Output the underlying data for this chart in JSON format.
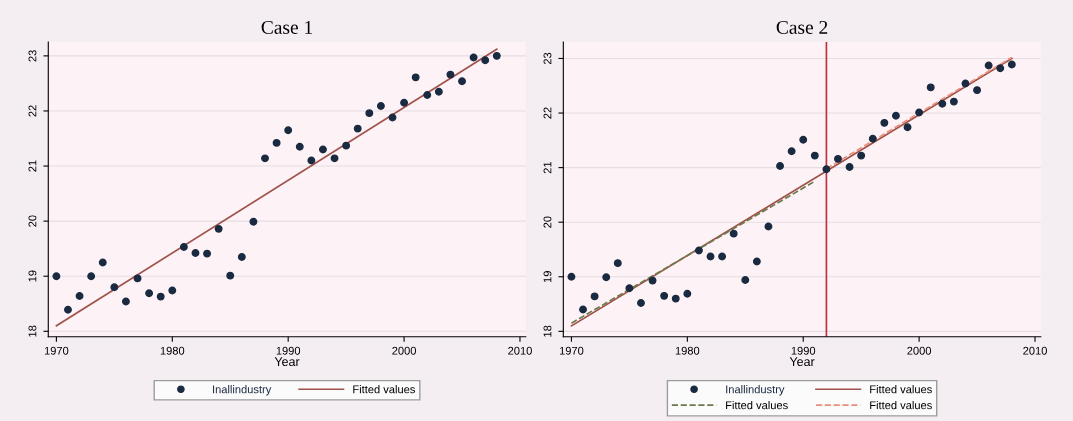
{
  "chart_data": [
    {
      "type": "scatter",
      "title": "Case 1",
      "xlabel": "Year",
      "xlim": [
        1969.3,
        2010.5
      ],
      "xticks": [
        1970,
        1980,
        1990,
        2000,
        2010
      ],
      "ylim": [
        17.9,
        23.25
      ],
      "yticks": [
        18,
        19,
        20,
        21,
        22,
        23
      ],
      "grid": "y",
      "legend": "bottom",
      "series": [
        {
          "name": "Inallindustry",
          "type": "scatter",
          "marker": "circle",
          "color": "#1a2a40",
          "x": [
            1970,
            1971,
            1972,
            1973,
            1974,
            1975,
            1976,
            1977,
            1978,
            1979,
            1980,
            1981,
            1982,
            1983,
            1984,
            1985,
            1986,
            1987,
            1988,
            1989,
            1990,
            1991,
            1992,
            1993,
            1994,
            1995,
            1996,
            1997,
            1998,
            1999,
            2000,
            2001,
            2002,
            2003,
            2004,
            2005,
            2006,
            2007,
            2008
          ],
          "values": [
            19.0,
            18.39,
            18.64,
            19.0,
            19.25,
            18.8,
            18.54,
            18.96,
            18.69,
            18.63,
            18.74,
            19.53,
            19.42,
            19.41,
            19.86,
            19.01,
            19.35,
            19.99,
            21.14,
            21.42,
            21.65,
            21.35,
            21.1,
            21.3,
            21.14,
            21.37,
            21.68,
            21.96,
            22.09,
            21.88,
            22.15,
            22.61,
            22.29,
            22.35,
            22.66,
            22.54,
            22.97,
            22.92,
            23.0
          ]
        },
        {
          "name": "Fitted values",
          "type": "line",
          "line_style": "solid",
          "color": "#a0524a",
          "x": [
            1970,
            2008
          ],
          "values": [
            18.1,
            23.12
          ]
        }
      ]
    },
    {
      "type": "scatter",
      "title": "Case 2",
      "xlabel": "Year",
      "xlim": [
        1969.3,
        2010.5
      ],
      "xticks": [
        1970,
        1980,
        1990,
        2000,
        2010
      ],
      "ylim": [
        17.9,
        23.3
      ],
      "yticks": [
        18,
        19,
        20,
        21,
        22,
        23
      ],
      "grid": "y",
      "legend": "bottom",
      "ref_lines": [
        {
          "axis": "x",
          "value": 1992,
          "color": "#c0303a"
        }
      ],
      "series": [
        {
          "name": "Inallindustry",
          "type": "scatter",
          "marker": "circle",
          "color": "#1a2a40",
          "x": [
            1970,
            1971,
            1972,
            1973,
            1974,
            1975,
            1976,
            1977,
            1978,
            1979,
            1980,
            1981,
            1982,
            1983,
            1984,
            1985,
            1986,
            1987,
            1988,
            1989,
            1990,
            1991,
            1992,
            1993,
            1994,
            1995,
            1996,
            1997,
            1998,
            1999,
            2000,
            2001,
            2002,
            2003,
            2004,
            2005,
            2006,
            2007,
            2008
          ],
          "values": [
            19.0,
            18.4,
            18.64,
            18.99,
            19.25,
            18.79,
            18.52,
            18.93,
            18.65,
            18.6,
            18.69,
            19.48,
            19.37,
            19.37,
            19.79,
            18.94,
            19.28,
            19.92,
            21.03,
            21.3,
            21.51,
            21.22,
            20.97,
            21.16,
            21.01,
            21.22,
            21.53,
            21.82,
            21.95,
            21.74,
            22.01,
            22.47,
            22.17,
            22.21,
            22.54,
            22.42,
            22.87,
            22.82,
            22.89
          ]
        },
        {
          "name": "Fitted values",
          "type": "line",
          "line_style": "solid",
          "color": "#a0524a",
          "x": [
            1970,
            2008
          ],
          "values": [
            18.1,
            23.0
          ]
        },
        {
          "name": "Fitted values",
          "type": "line",
          "line_style": "dashed",
          "color": "#6b7a4a",
          "x": [
            1970,
            1991
          ],
          "values": [
            18.15,
            20.75
          ]
        },
        {
          "name": "Fitted values",
          "type": "line",
          "line_style": "dashed",
          "color": "#e8907a",
          "x": [
            1992,
            2008
          ],
          "values": [
            20.98,
            23.02
          ]
        }
      ]
    }
  ]
}
